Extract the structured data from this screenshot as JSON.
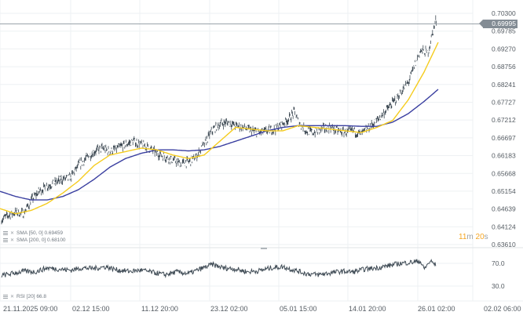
{
  "chart_data": {
    "type": "line",
    "title": "",
    "panes": [
      {
        "name": "price",
        "series": [
          {
            "name": "Price",
            "color": "#3f4b55",
            "style": "candles/ohlc dense"
          },
          {
            "name": "SMA [50, 0]",
            "color": "#f5cc1e",
            "last": 0.69459
          },
          {
            "name": "SMA [200, 0]",
            "color": "#3a3fa0",
            "last": 0.681
          }
        ],
        "y_ticks": [
          "0.70300",
          "0.69785",
          "0.69270",
          "0.68756",
          "0.68241",
          "0.67727",
          "0.67212",
          "0.66697",
          "0.66183",
          "0.65668",
          "0.65154",
          "0.64639",
          "0.64124",
          "0.63610"
        ],
        "ylim": [
          0.6361,
          0.703
        ],
        "current_price": "0.69995",
        "price_approx": [
          [
            0,
            0.643
          ],
          [
            10,
            0.6445
          ],
          [
            20,
            0.6455
          ],
          [
            30,
            0.645
          ],
          [
            40,
            0.649
          ],
          [
            50,
            0.6515
          ],
          [
            60,
            0.653
          ],
          [
            70,
            0.654
          ],
          [
            80,
            0.655
          ],
          [
            90,
            0.6555
          ],
          [
            100,
            0.659
          ],
          [
            110,
            0.661
          ],
          [
            120,
            0.663
          ],
          [
            130,
            0.664
          ],
          [
            140,
            0.663
          ],
          [
            150,
            0.664
          ],
          [
            160,
            0.665
          ],
          [
            170,
            0.666
          ],
          [
            180,
            0.665
          ],
          [
            190,
            0.664
          ],
          [
            200,
            0.6625
          ],
          [
            210,
            0.6615
          ],
          [
            220,
            0.6605
          ],
          [
            230,
            0.6595
          ],
          [
            240,
            0.66
          ],
          [
            250,
            0.6615
          ],
          [
            260,
            0.665
          ],
          [
            270,
            0.669
          ],
          [
            280,
            0.671
          ],
          [
            290,
            0.6715
          ],
          [
            300,
            0.6705
          ],
          [
            310,
            0.67
          ],
          [
            320,
            0.669
          ],
          [
            330,
            0.6685
          ],
          [
            340,
            0.669
          ],
          [
            350,
            0.6695
          ],
          [
            360,
            0.671
          ],
          [
            370,
            0.673
          ],
          [
            375,
            0.6745
          ],
          [
            380,
            0.6715
          ],
          [
            390,
            0.669
          ],
          [
            400,
            0.6685
          ],
          [
            410,
            0.6695
          ],
          [
            420,
            0.67
          ],
          [
            430,
            0.669
          ],
          [
            440,
            0.6685
          ],
          [
            450,
            0.669
          ],
          [
            460,
            0.668
          ],
          [
            470,
            0.67
          ],
          [
            480,
            0.672
          ],
          [
            490,
            0.6745
          ],
          [
            500,
            0.677
          ],
          [
            510,
            0.68
          ],
          [
            520,
            0.683
          ],
          [
            528,
            0.688
          ],
          [
            535,
            0.692
          ],
          [
            540,
            0.692
          ],
          [
            545,
            0.6915
          ],
          [
            550,
            0.6965
          ],
          [
            555,
            0.701
          ],
          [
            558,
            0.69995
          ]
        ],
        "sma50_approx": [
          [
            0,
            0.6465
          ],
          [
            20,
            0.645
          ],
          [
            40,
            0.646
          ],
          [
            60,
            0.648
          ],
          [
            80,
            0.651
          ],
          [
            100,
            0.6545
          ],
          [
            120,
            0.659
          ],
          [
            140,
            0.662
          ],
          [
            160,
            0.663
          ],
          [
            180,
            0.664
          ],
          [
            200,
            0.6635
          ],
          [
            220,
            0.662
          ],
          [
            240,
            0.661
          ],
          [
            260,
            0.662
          ],
          [
            280,
            0.666
          ],
          [
            300,
            0.67
          ],
          [
            320,
            0.6695
          ],
          [
            340,
            0.669
          ],
          [
            360,
            0.669
          ],
          [
            380,
            0.6705
          ],
          [
            400,
            0.67
          ],
          [
            420,
            0.6695
          ],
          [
            440,
            0.669
          ],
          [
            460,
            0.6685
          ],
          [
            480,
            0.67
          ],
          [
            500,
            0.672
          ],
          [
            520,
            0.678
          ],
          [
            540,
            0.686
          ],
          [
            558,
            0.6946
          ]
        ],
        "sma200_approx": [
          [
            0,
            0.6515
          ],
          [
            20,
            0.65
          ],
          [
            40,
            0.649
          ],
          [
            60,
            0.649
          ],
          [
            80,
            0.65
          ],
          [
            100,
            0.652
          ],
          [
            120,
            0.655
          ],
          [
            140,
            0.6585
          ],
          [
            160,
            0.661
          ],
          [
            180,
            0.6625
          ],
          [
            200,
            0.6635
          ],
          [
            220,
            0.6635
          ],
          [
            240,
            0.6632
          ],
          [
            260,
            0.6635
          ],
          [
            280,
            0.6645
          ],
          [
            300,
            0.666
          ],
          [
            320,
            0.6675
          ],
          [
            340,
            0.669
          ],
          [
            360,
            0.67
          ],
          [
            380,
            0.6705
          ],
          [
            400,
            0.6705
          ],
          [
            420,
            0.6705
          ],
          [
            440,
            0.6705
          ],
          [
            460,
            0.6703
          ],
          [
            480,
            0.6703
          ],
          [
            500,
            0.6715
          ],
          [
            520,
            0.674
          ],
          [
            540,
            0.6775
          ],
          [
            558,
            0.681
          ]
        ]
      },
      {
        "name": "rsi",
        "series": [
          {
            "name": "RSI [20]",
            "color": "#3f4b55",
            "last": 66.8
          }
        ],
        "y_ticks": [
          "70.0",
          "30.0"
        ],
        "ylim": [
          10,
          90
        ],
        "rsi_approx": [
          [
            0,
            48
          ],
          [
            15,
            52
          ],
          [
            30,
            56
          ],
          [
            45,
            55
          ],
          [
            60,
            62
          ],
          [
            75,
            60
          ],
          [
            90,
            58
          ],
          [
            105,
            62
          ],
          [
            120,
            61
          ],
          [
            135,
            64
          ],
          [
            150,
            58
          ],
          [
            165,
            56
          ],
          [
            180,
            58
          ],
          [
            195,
            54
          ],
          [
            210,
            50
          ],
          [
            225,
            55
          ],
          [
            240,
            52
          ],
          [
            255,
            60
          ],
          [
            270,
            68
          ],
          [
            285,
            62
          ],
          [
            300,
            60
          ],
          [
            315,
            55
          ],
          [
            330,
            57
          ],
          [
            345,
            62
          ],
          [
            360,
            64
          ],
          [
            375,
            58
          ],
          [
            390,
            52
          ],
          [
            405,
            50
          ],
          [
            420,
            53
          ],
          [
            435,
            56
          ],
          [
            450,
            55
          ],
          [
            465,
            60
          ],
          [
            480,
            62
          ],
          [
            495,
            66
          ],
          [
            510,
            70
          ],
          [
            525,
            72
          ],
          [
            535,
            74
          ],
          [
            540,
            60
          ],
          [
            548,
            74
          ],
          [
            555,
            67
          ]
        ]
      }
    ],
    "x_ticks": [
      "21.11.2025  09:00",
      "02.12  15:00",
      "11.12  20:00",
      "23.12  02:00",
      "05.01  15:00",
      "14.01  20:00",
      "26.01  02:00",
      "02.02  06:00"
    ],
    "xlabel": "",
    "ylabel": "",
    "grid": true
  },
  "legend": {
    "sma50": "SMA [50, 0]  0.69459",
    "sma200": "SMA [200, 0]  0.68100",
    "rsi": "RSI [20]  66.8"
  },
  "countdown": {
    "minutes": "11",
    "m_unit": "m",
    "seconds": "20",
    "s_unit": "s"
  },
  "price_tag": "0.69995",
  "colors": {
    "price": "#3f4b55",
    "sma50": "#f5cc1e",
    "sma200": "#3a3fa0",
    "grid": "#eef1f3",
    "price_line": "#9aa3aa",
    "countdown": "#f5a623"
  }
}
